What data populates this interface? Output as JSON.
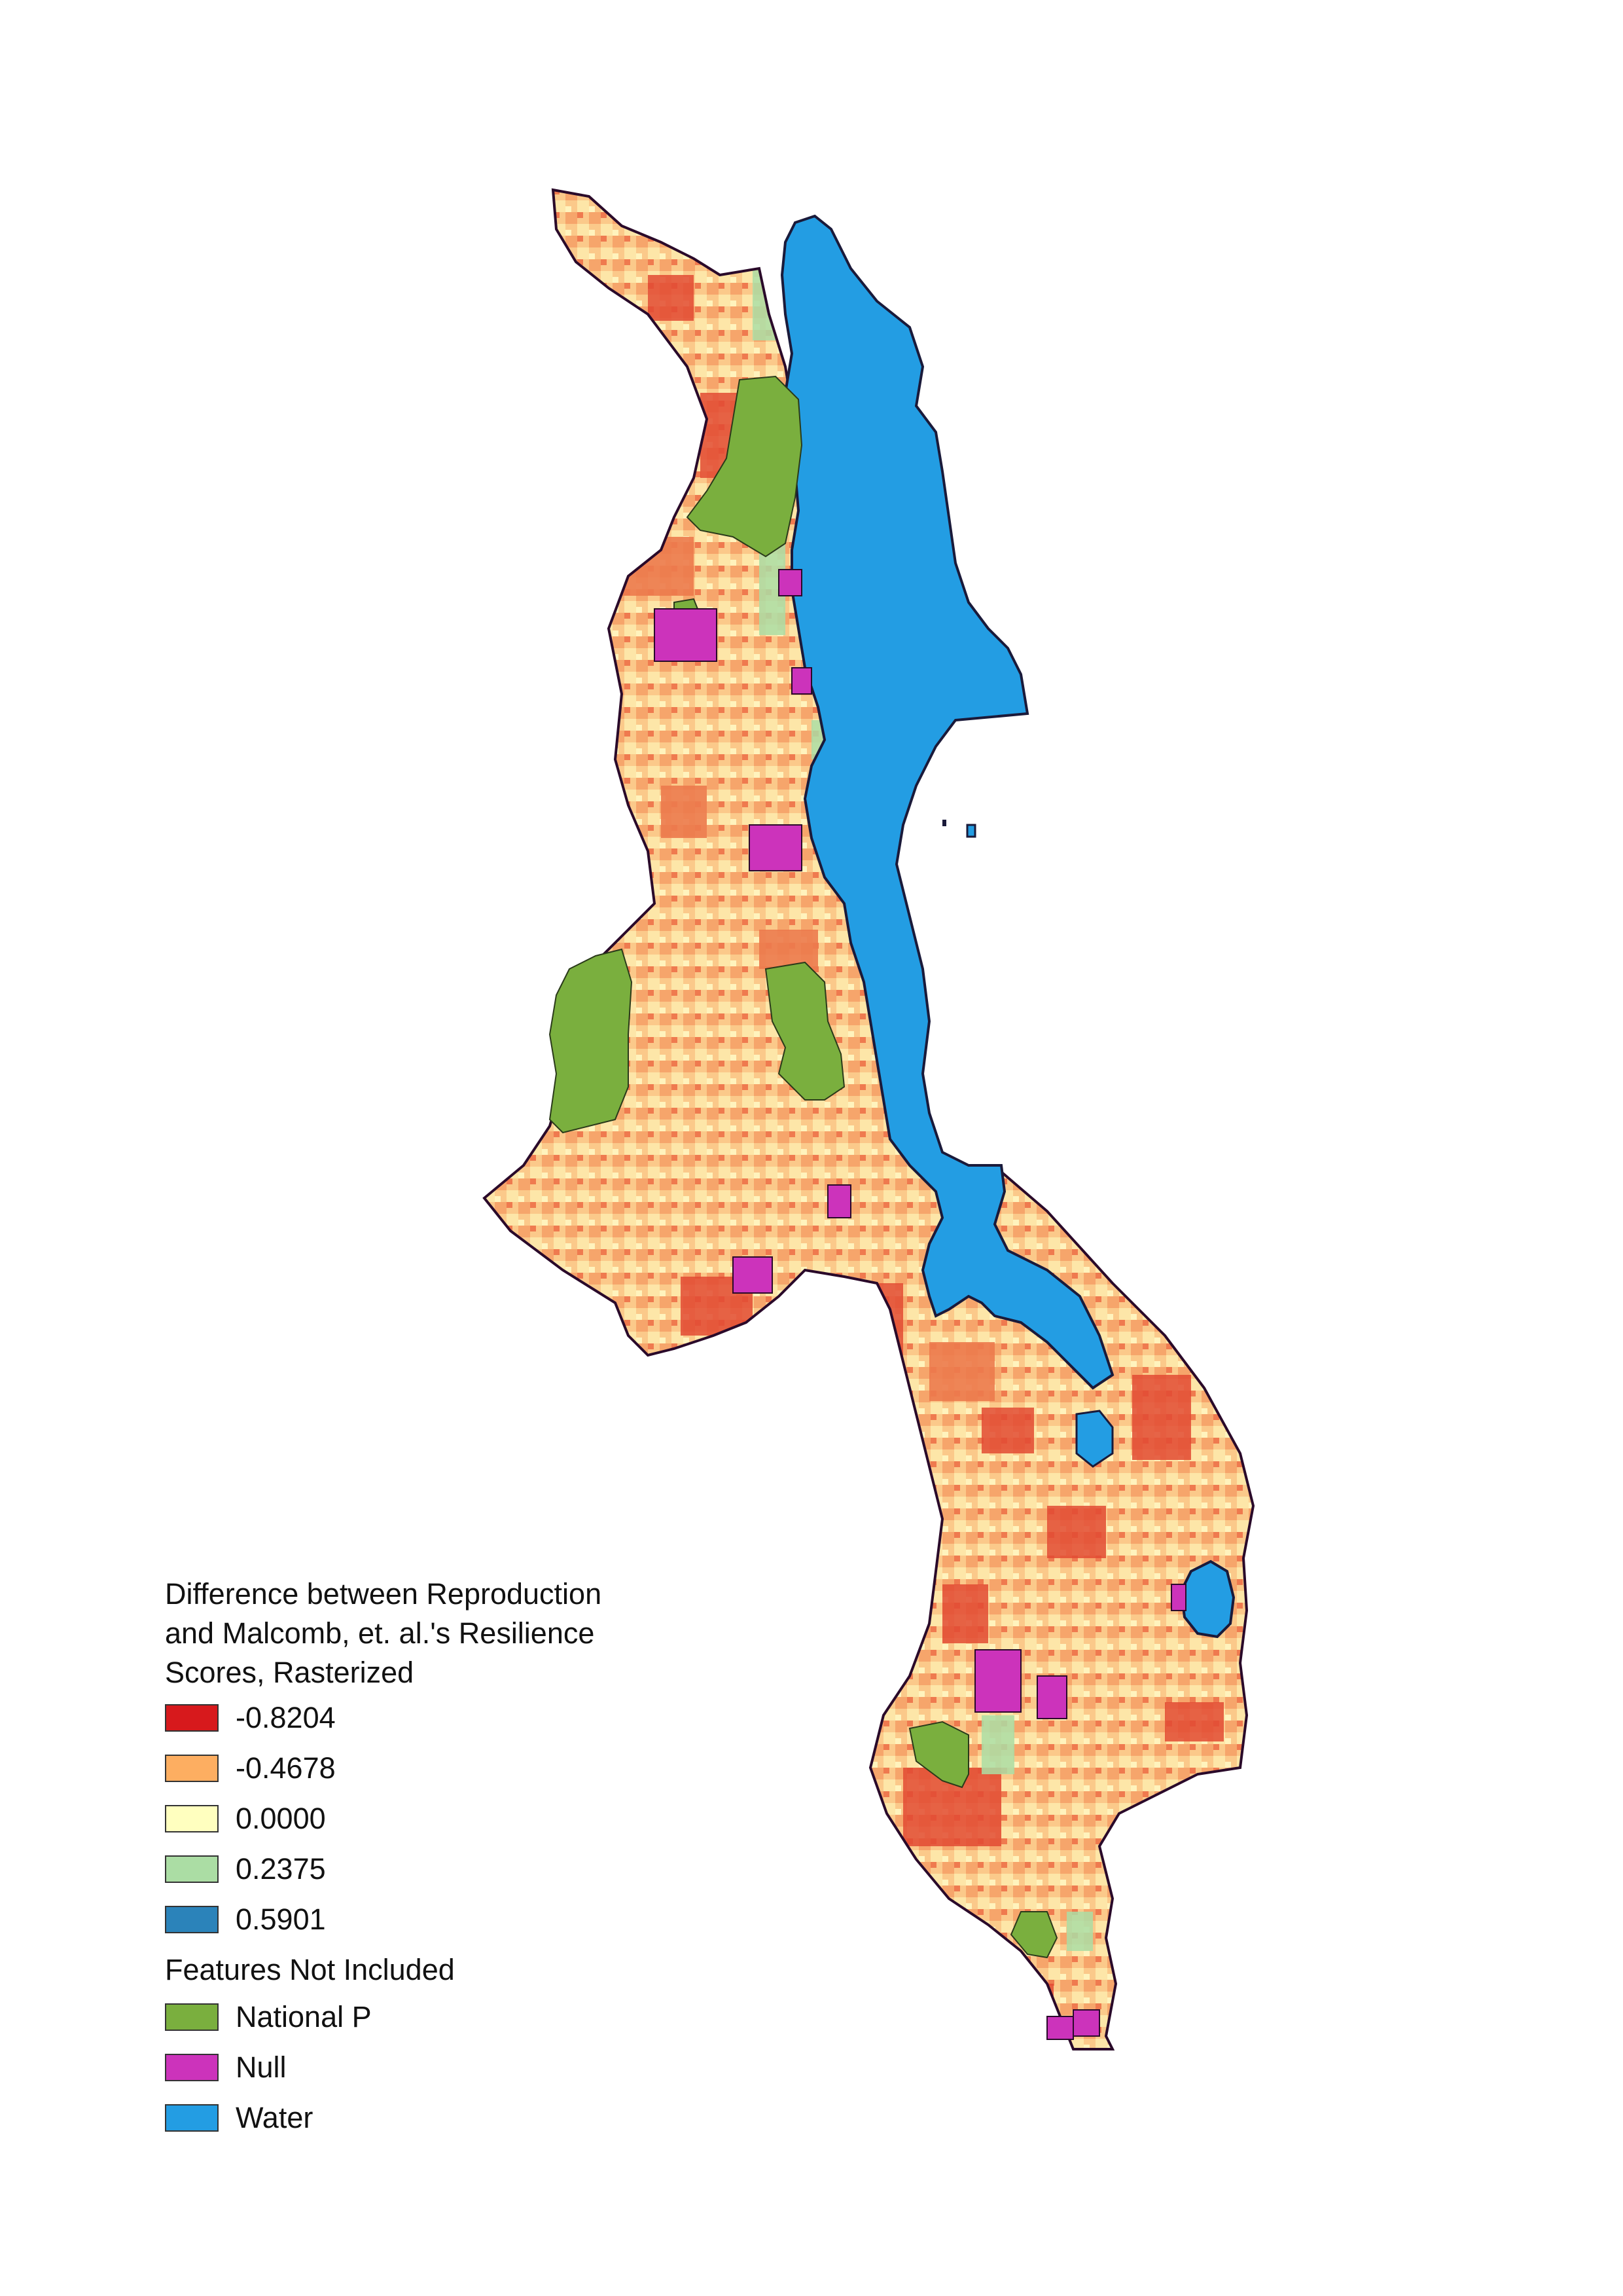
{
  "legend": {
    "title": "Difference between Reproduction\nand Malcomb, et. al.'s Resilience\nScores, Rasterized",
    "classes": [
      {
        "label": "-0.8204",
        "color": "#d7191c"
      },
      {
        "label": "-0.4678",
        "color": "#fdae61"
      },
      {
        "label": "0.0000",
        "color": "#ffffbf"
      },
      {
        "label": "0.2375",
        "color": "#abdda4"
      },
      {
        "label": "0.5901",
        "color": "#2b83ba"
      }
    ],
    "excluded_title": "Features Not Included",
    "excluded": [
      {
        "label": "National P",
        "color": "#7aaf3e",
        "icon": "national-park-swatch"
      },
      {
        "label": "Null",
        "color": "#cc33bb",
        "icon": "null-swatch"
      },
      {
        "label": "Water",
        "color": "#239de3",
        "icon": "water-swatch"
      }
    ]
  },
  "colors": {
    "outline": "#2a0a2a",
    "water": "#239de3",
    "park": "#7aaf3e",
    "null": "#cc33bb"
  }
}
